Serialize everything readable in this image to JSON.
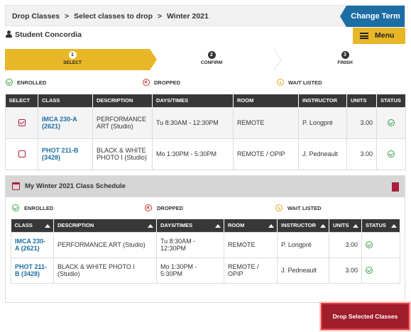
{
  "breadcrumb": {
    "items": [
      "Drop Classes",
      "Select classes to drop",
      "Winter 2021"
    ],
    "sep": ">"
  },
  "change_term_label": "Change Term",
  "student_name": "Student Concordia",
  "menu_label": "Menu",
  "steps": [
    {
      "num": "1",
      "name": "SELECT"
    },
    {
      "num": "2",
      "name": "CONFIRM"
    },
    {
      "num": "3",
      "name": "FINISH"
    }
  ],
  "legend": {
    "enrolled": "ENROLLED",
    "dropped": "DROPPED",
    "wait_listed": "WAIT LISTED"
  },
  "select_table": {
    "headers": [
      "SELECT",
      "CLASS",
      "DESCRIPTION",
      "DAYS/TIMES",
      "ROOM",
      "INSTRUCTOR",
      "UNITS",
      "STATUS"
    ],
    "rows": [
      {
        "checked": true,
        "class": "IMCA 230-A (2621)",
        "description": "PERFORMANCE ART (Studio)",
        "days": "Tu 8:30AM - 12:30PM",
        "room": "REMOTE",
        "instructor": "P. Longpré",
        "units": "3.00",
        "status": "enrolled"
      },
      {
        "checked": false,
        "class": "PHOT 211-B (3428)",
        "description": "BLACK & WHITE PHOTO I (Studio)",
        "days": "Mo 1:30PM - 5:30PM",
        "room": "REMOTE / OPIP",
        "instructor": "J. Pedneault",
        "units": "3.00",
        "status": "enrolled"
      }
    ]
  },
  "schedule": {
    "title": "My Winter 2021 Class Schedule",
    "headers": [
      "CLASS",
      "DESCRIPTION",
      "DAYS/TIMES",
      "ROOM",
      "INSTRUCTOR",
      "UNITS",
      "STATUS"
    ],
    "rows": [
      {
        "class": "IMCA 230-A (2621)",
        "description": "PERFORMANCE ART (Studio)",
        "days": "Tu 8:30AM - 12:30PM",
        "room": "REMOTE",
        "instructor": "P. Longpré",
        "units": "3.00",
        "status": "enrolled"
      },
      {
        "class": "PHOT 211-B (3428)",
        "description": "BLACK & WHITE PHOTO I (Studio)",
        "days": "Mo 1:30PM - 5:30PM",
        "room": "REMOTE / OPIP",
        "instructor": "J. Pedneault",
        "units": "3.00",
        "status": "enrolled"
      }
    ]
  },
  "drop_button_label": "Drop Selected Classes",
  "colors": {
    "accent_blue": "#1c6ea4",
    "accent_gold": "#e8b727",
    "maroon": "#a01d2c",
    "enrolled_green": "#3aa14a",
    "dropped_red": "#c0392b",
    "wait_orange": "#e0a628"
  },
  "icons": [
    "user-icon",
    "hamburger-icon",
    "calendar-icon",
    "check-circle-icon",
    "x-circle-icon",
    "clock-icon",
    "checkbox-icon",
    "sort-asc-icon",
    "collapse-icon"
  ]
}
